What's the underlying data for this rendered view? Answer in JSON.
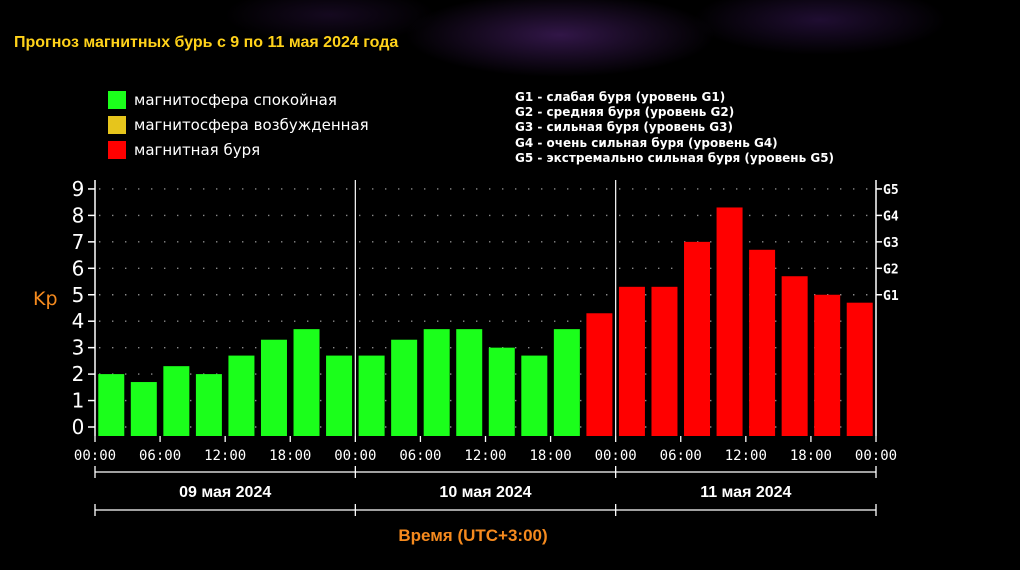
{
  "title": "Прогноз магнитных бурь с 9 по 11 мая 2024 года",
  "legend": [
    {
      "label": "магнитосфера спокойная",
      "color": "#1bff1b"
    },
    {
      "label": "магнитосфера возбужденная",
      "color": "#e6c51c"
    },
    {
      "label": "магнитная буря",
      "color": "#ff0000"
    }
  ],
  "g_legend": [
    "G1 - слабая буря (уровень G1)",
    "G2 - средняя буря (уровень G2)",
    "G3 - сильная буря (уровень G3)",
    "G4 - очень сильная буря (уровень G4)",
    "G5 - экстремально сильная буря (уровень G5)"
  ],
  "chart_data": {
    "type": "bar",
    "ylabel": "Kp",
    "xlabel": "Время (UTC+3:00)",
    "ylim": [
      0,
      9
    ],
    "yticks": [
      "0",
      "1",
      "2",
      "3",
      "4",
      "5",
      "6",
      "7",
      "8",
      "9"
    ],
    "right_ticks": [
      {
        "label": "G1",
        "value": 5
      },
      {
        "label": "G2",
        "value": 6
      },
      {
        "label": "G3",
        "value": 7
      },
      {
        "label": "G4",
        "value": 8
      },
      {
        "label": "G5",
        "value": 9
      }
    ],
    "xticks": [
      "00:00",
      "06:00",
      "12:00",
      "18:00",
      "00:00",
      "06:00",
      "12:00",
      "18:00",
      "00:00",
      "06:00",
      "12:00",
      "18:00",
      "00:00"
    ],
    "days": [
      "09 мая 2024",
      "10 мая 2024",
      "11 мая 2024"
    ],
    "values": [
      2.0,
      1.7,
      2.3,
      2.0,
      2.7,
      3.3,
      3.7,
      2.7,
      2.7,
      3.3,
      3.7,
      3.7,
      3.0,
      2.7,
      3.7,
      4.3,
      5.3,
      5.3,
      7.0,
      8.3,
      6.7,
      5.7,
      5.0,
      4.7
    ],
    "colors": {
      "quiet": "#1bff1b",
      "storm": "#ff0000"
    },
    "grid": true
  },
  "styling": {
    "axis_color": "#ffffff",
    "label_color": "#f58a1e",
    "text_color": "#ffffff"
  }
}
